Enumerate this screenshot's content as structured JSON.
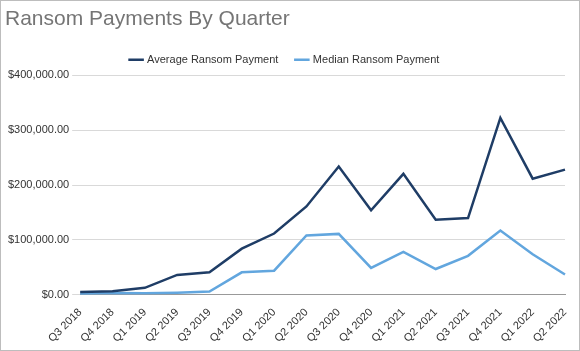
{
  "chart_data": {
    "type": "line",
    "title": "Ransom Payments By Quarter",
    "categories": [
      "Q3 2018",
      "Q4 2018",
      "Q1 2019",
      "Q2 2019",
      "Q3 2019",
      "Q4 2019",
      "Q1 2020",
      "Q2 2020",
      "Q3 2020",
      "Q4 2020",
      "Q1 2021",
      "Q2 2021",
      "Q3 2021",
      "Q4 2021",
      "Q1 2022",
      "Q2 2022"
    ],
    "series": [
      {
        "name": "Average Ransom Payment",
        "color": "#1f3d66",
        "values": [
          5000,
          6700,
          12800,
          36300,
          41200,
          84100,
          111600,
          161000,
          233800,
          154100,
          220300,
          136600,
          139700,
          322200,
          211500,
          228100
        ]
      },
      {
        "name": "Median Ransom Payment",
        "color": "#62a6de",
        "values": [
          2000,
          3500,
          3000,
          4000,
          6000,
          41000,
          44000,
          108000,
          111000,
          49000,
          78000,
          47000,
          71000,
          117000,
          74000,
          37000
        ]
      }
    ],
    "ylim": [
      0,
      400000
    ],
    "yticks": [
      {
        "value": 0,
        "label": "$0.00"
      },
      {
        "value": 100000,
        "label": "$100,000.00"
      },
      {
        "value": 200000,
        "label": "$200,000.00"
      },
      {
        "value": 300000,
        "label": "$300,000.00"
      },
      {
        "value": 400000,
        "label": "$400,000.00"
      }
    ],
    "grid": true,
    "legend": "top"
  }
}
